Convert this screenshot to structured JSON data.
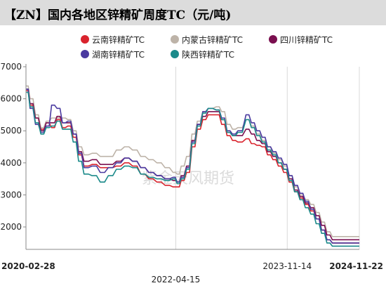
{
  "title": "【ZN】国内各地区锌精矿周度TC（元/吨)",
  "watermark": "紫金天风期货",
  "chart_data": {
    "type": "line",
    "title": "【ZN】国内各地区锌精矿周度TC（元/吨)",
    "xlabel": "",
    "ylabel": "",
    "ylim": [
      1300,
      7000
    ],
    "yticks": [
      2000,
      3000,
      4000,
      5000,
      6000,
      7000
    ],
    "xlim": [
      "2020-02-28",
      "2024-11-22"
    ],
    "x_tick_labels": [
      {
        "label": "2020-02-28",
        "date": "2020-02-28",
        "bold": true
      },
      {
        "label": "2022-04-15",
        "date": "2022-04-15",
        "bold": false
      },
      {
        "label": "2023-11-14",
        "date": "2023-11-14",
        "bold": false
      },
      {
        "label": "2024-11-22",
        "date": "2024-11-22",
        "bold": true
      }
    ],
    "grid": "vertical",
    "legend_position": "top",
    "series": [
      {
        "name": "云南锌精矿TC",
        "color": "#d9232d",
        "points": [
          [
            "2020-02-28",
            6250
          ],
          [
            "2020-03-20",
            5800
          ],
          [
            "2020-04-17",
            5400
          ],
          [
            "2020-05-15",
            5050
          ],
          [
            "2020-06-12",
            5250
          ],
          [
            "2020-07-10",
            5100
          ],
          [
            "2020-08-07",
            5350
          ],
          [
            "2020-09-04",
            5100
          ],
          [
            "2020-10-02",
            5150
          ],
          [
            "2020-10-30",
            4800
          ],
          [
            "2020-11-27",
            4250
          ],
          [
            "2020-12-25",
            3900
          ],
          [
            "2021-02-05",
            3950
          ],
          [
            "2021-03-19",
            3850
          ],
          [
            "2021-04-30",
            3850
          ],
          [
            "2021-06-11",
            3900
          ],
          [
            "2021-07-23",
            4000
          ],
          [
            "2021-09-03",
            3900
          ],
          [
            "2021-10-15",
            3650
          ],
          [
            "2021-11-26",
            3500
          ],
          [
            "2022-01-07",
            3400
          ],
          [
            "2022-02-18",
            3300
          ],
          [
            "2022-04-01",
            3250
          ],
          [
            "2022-04-22",
            3250
          ],
          [
            "2022-05-13",
            3450
          ],
          [
            "2022-06-10",
            3700
          ],
          [
            "2022-07-08",
            4500
          ],
          [
            "2022-08-05",
            5050
          ],
          [
            "2022-09-02",
            5350
          ],
          [
            "2022-09-30",
            5500
          ],
          [
            "2022-11-11",
            5500
          ],
          [
            "2022-12-09",
            5200
          ],
          [
            "2023-01-06",
            4850
          ],
          [
            "2023-02-03",
            4700
          ],
          [
            "2023-03-03",
            4650
          ],
          [
            "2023-04-14",
            4750
          ],
          [
            "2023-05-12",
            4600
          ],
          [
            "2023-06-09",
            4550
          ],
          [
            "2023-07-07",
            4500
          ],
          [
            "2023-08-04",
            4250
          ],
          [
            "2023-09-01",
            4100
          ],
          [
            "2023-09-29",
            3900
          ],
          [
            "2023-10-27",
            3700
          ],
          [
            "2023-11-24",
            3400
          ],
          [
            "2023-12-22",
            3100
          ],
          [
            "2024-01-19",
            2900
          ],
          [
            "2024-02-16",
            2700
          ],
          [
            "2024-03-15",
            2500
          ],
          [
            "2024-04-12",
            2250
          ],
          [
            "2024-05-10",
            1900
          ],
          [
            "2024-06-07",
            1600
          ],
          [
            "2024-07-05",
            1500
          ],
          [
            "2024-08-30",
            1500
          ],
          [
            "2024-11-22",
            1500
          ]
        ]
      },
      {
        "name": "内蒙古锌精矿TC",
        "color": "#bdb3a8",
        "points": [
          [
            "2020-02-28",
            6400
          ],
          [
            "2020-03-20",
            6000
          ],
          [
            "2020-04-17",
            5500
          ],
          [
            "2020-05-15",
            5100
          ],
          [
            "2020-06-12",
            5300
          ],
          [
            "2020-07-10",
            5400
          ],
          [
            "2020-08-07",
            5400
          ],
          [
            "2020-09-04",
            5400
          ],
          [
            "2020-10-02",
            5350
          ],
          [
            "2020-10-30",
            5000
          ],
          [
            "2020-11-27",
            4500
          ],
          [
            "2020-12-25",
            4250
          ],
          [
            "2021-02-05",
            4300
          ],
          [
            "2021-03-19",
            4200
          ],
          [
            "2021-04-30",
            4200
          ],
          [
            "2021-06-11",
            4400
          ],
          [
            "2021-07-23",
            4500
          ],
          [
            "2021-09-03",
            4400
          ],
          [
            "2021-10-15",
            4200
          ],
          [
            "2021-11-26",
            4100
          ],
          [
            "2022-01-07",
            4000
          ],
          [
            "2022-02-18",
            3850
          ],
          [
            "2022-04-01",
            3700
          ],
          [
            "2022-04-22",
            3650
          ],
          [
            "2022-05-13",
            3900
          ],
          [
            "2022-06-10",
            4200
          ],
          [
            "2022-07-08",
            4900
          ],
          [
            "2022-08-05",
            5300
          ],
          [
            "2022-09-02",
            5600
          ],
          [
            "2022-09-30",
            5700
          ],
          [
            "2022-11-11",
            5750
          ],
          [
            "2022-12-09",
            5600
          ],
          [
            "2023-01-06",
            5200
          ],
          [
            "2023-02-03",
            5050
          ],
          [
            "2023-03-03",
            5100
          ],
          [
            "2023-04-14",
            5350
          ],
          [
            "2023-05-12",
            5150
          ],
          [
            "2023-06-09",
            4900
          ],
          [
            "2023-07-07",
            4700
          ],
          [
            "2023-08-04",
            4500
          ],
          [
            "2023-09-01",
            4300
          ],
          [
            "2023-09-29",
            4100
          ],
          [
            "2023-10-27",
            3900
          ],
          [
            "2023-11-24",
            3600
          ],
          [
            "2023-12-22",
            3250
          ],
          [
            "2024-01-19",
            3000
          ],
          [
            "2024-02-16",
            2850
          ],
          [
            "2024-03-15",
            2700
          ],
          [
            "2024-04-12",
            2450
          ],
          [
            "2024-05-10",
            2150
          ],
          [
            "2024-06-07",
            1850
          ],
          [
            "2024-07-05",
            1700
          ],
          [
            "2024-08-30",
            1700
          ],
          [
            "2024-11-22",
            1700
          ]
        ]
      },
      {
        "name": "四川锌精矿TC",
        "color": "#7a0f4f",
        "points": [
          [
            "2020-02-28",
            6300
          ],
          [
            "2020-03-20",
            5850
          ],
          [
            "2020-04-17",
            5400
          ],
          [
            "2020-05-15",
            5000
          ],
          [
            "2020-06-12",
            5250
          ],
          [
            "2020-07-10",
            5250
          ],
          [
            "2020-08-07",
            5450
          ],
          [
            "2020-09-04",
            5250
          ],
          [
            "2020-10-02",
            5250
          ],
          [
            "2020-10-30",
            4900
          ],
          [
            "2020-11-27",
            4350
          ],
          [
            "2020-12-25",
            4050
          ],
          [
            "2021-02-05",
            4100
          ],
          [
            "2021-03-19",
            3950
          ],
          [
            "2021-04-30",
            3950
          ],
          [
            "2021-06-11",
            4050
          ],
          [
            "2021-07-23",
            4150
          ],
          [
            "2021-09-03",
            4050
          ],
          [
            "2021-10-15",
            3850
          ],
          [
            "2021-11-26",
            3700
          ],
          [
            "2022-01-07",
            3600
          ],
          [
            "2022-02-18",
            3500
          ],
          [
            "2022-04-01",
            3450
          ],
          [
            "2022-04-22",
            3400
          ],
          [
            "2022-05-13",
            3600
          ],
          [
            "2022-06-10",
            3900
          ],
          [
            "2022-07-08",
            4700
          ],
          [
            "2022-08-05",
            5200
          ],
          [
            "2022-09-02",
            5450
          ],
          [
            "2022-09-30",
            5600
          ],
          [
            "2022-11-11",
            5600
          ],
          [
            "2022-12-09",
            5350
          ],
          [
            "2023-01-06",
            4950
          ],
          [
            "2023-02-03",
            4850
          ],
          [
            "2023-03-03",
            4850
          ],
          [
            "2023-04-14",
            5050
          ],
          [
            "2023-05-12",
            4900
          ],
          [
            "2023-06-09",
            4700
          ],
          [
            "2023-07-07",
            4600
          ],
          [
            "2023-08-04",
            4350
          ],
          [
            "2023-09-01",
            4200
          ],
          [
            "2023-09-29",
            4000
          ],
          [
            "2023-10-27",
            3800
          ],
          [
            "2023-11-24",
            3500
          ],
          [
            "2023-12-22",
            3150
          ],
          [
            "2024-01-19",
            2950
          ],
          [
            "2024-02-16",
            2750
          ],
          [
            "2024-03-15",
            2600
          ],
          [
            "2024-04-12",
            2350
          ],
          [
            "2024-05-10",
            2050
          ],
          [
            "2024-06-07",
            1750
          ],
          [
            "2024-07-05",
            1600
          ],
          [
            "2024-08-30",
            1600
          ],
          [
            "2024-11-22",
            1600
          ]
        ]
      },
      {
        "name": "湖南锌精矿TC",
        "color": "#4a3aa0",
        "points": [
          [
            "2020-02-28",
            6300
          ],
          [
            "2020-03-20",
            5700
          ],
          [
            "2020-04-17",
            5200
          ],
          [
            "2020-05-15",
            4950
          ],
          [
            "2020-06-12",
            5150
          ],
          [
            "2020-07-10",
            5800
          ],
          [
            "2020-08-07",
            5700
          ],
          [
            "2020-09-04",
            5250
          ],
          [
            "2020-10-02",
            5300
          ],
          [
            "2020-10-30",
            4900
          ],
          [
            "2020-11-27",
            4300
          ],
          [
            "2020-12-25",
            3850
          ],
          [
            "2021-02-05",
            3900
          ],
          [
            "2021-03-19",
            3700
          ],
          [
            "2021-04-30",
            3850
          ],
          [
            "2021-06-11",
            4000
          ],
          [
            "2021-07-23",
            4150
          ],
          [
            "2021-09-03",
            4050
          ],
          [
            "2021-10-15",
            3850
          ],
          [
            "2021-11-26",
            3700
          ],
          [
            "2022-01-07",
            3600
          ],
          [
            "2022-02-18",
            3500
          ],
          [
            "2022-04-01",
            3550
          ],
          [
            "2022-04-22",
            3400
          ],
          [
            "2022-05-13",
            3550
          ],
          [
            "2022-06-10",
            3850
          ],
          [
            "2022-07-08",
            4650
          ],
          [
            "2022-08-05",
            5200
          ],
          [
            "2022-09-02",
            5600
          ],
          [
            "2022-09-30",
            5700
          ],
          [
            "2022-11-11",
            5650
          ],
          [
            "2022-12-09",
            5400
          ],
          [
            "2023-01-06",
            5000
          ],
          [
            "2023-02-03",
            4900
          ],
          [
            "2023-03-03",
            5000
          ],
          [
            "2023-04-14",
            5500
          ],
          [
            "2023-05-12",
            5250
          ],
          [
            "2023-06-09",
            5000
          ],
          [
            "2023-07-07",
            4800
          ],
          [
            "2023-08-04",
            4500
          ],
          [
            "2023-09-01",
            4350
          ],
          [
            "2023-09-29",
            4150
          ],
          [
            "2023-10-27",
            3950
          ],
          [
            "2023-11-24",
            3600
          ],
          [
            "2023-12-22",
            3300
          ],
          [
            "2024-01-19",
            3050
          ],
          [
            "2024-02-16",
            2800
          ],
          [
            "2024-03-15",
            2550
          ],
          [
            "2024-04-12",
            2250
          ],
          [
            "2024-05-10",
            1900
          ],
          [
            "2024-06-07",
            1600
          ],
          [
            "2024-07-05",
            1500
          ],
          [
            "2024-08-30",
            1500
          ],
          [
            "2024-11-22",
            1500
          ]
        ]
      },
      {
        "name": "陕西锌精矿TC",
        "color": "#1b8a8a",
        "points": [
          [
            "2020-02-28",
            6200
          ],
          [
            "2020-03-20",
            5750
          ],
          [
            "2020-04-17",
            5250
          ],
          [
            "2020-05-15",
            4900
          ],
          [
            "2020-06-12",
            5100
          ],
          [
            "2020-07-10",
            5150
          ],
          [
            "2020-08-07",
            5300
          ],
          [
            "2020-09-04",
            5050
          ],
          [
            "2020-10-02",
            5050
          ],
          [
            "2020-10-30",
            4650
          ],
          [
            "2020-11-27",
            4050
          ],
          [
            "2020-12-25",
            3650
          ],
          [
            "2021-02-05",
            3600
          ],
          [
            "2021-03-19",
            3400
          ],
          [
            "2021-04-30",
            3600
          ],
          [
            "2021-06-11",
            3800
          ],
          [
            "2021-07-23",
            3900
          ],
          [
            "2021-09-03",
            3850
          ],
          [
            "2021-10-15",
            3650
          ],
          [
            "2021-11-26",
            3550
          ],
          [
            "2022-01-07",
            3500
          ],
          [
            "2022-02-18",
            3450
          ],
          [
            "2022-04-01",
            3500
          ],
          [
            "2022-04-22",
            3350
          ],
          [
            "2022-05-13",
            3500
          ],
          [
            "2022-06-10",
            3800
          ],
          [
            "2022-07-08",
            4600
          ],
          [
            "2022-08-05",
            5150
          ],
          [
            "2022-09-02",
            5550
          ],
          [
            "2022-09-30",
            5700
          ],
          [
            "2022-11-11",
            5650
          ],
          [
            "2022-12-09",
            5350
          ],
          [
            "2023-01-06",
            4950
          ],
          [
            "2023-02-03",
            4850
          ],
          [
            "2023-03-03",
            4950
          ],
          [
            "2023-04-14",
            5350
          ],
          [
            "2023-05-12",
            5100
          ],
          [
            "2023-06-09",
            4850
          ],
          [
            "2023-07-07",
            4650
          ],
          [
            "2023-08-04",
            4400
          ],
          [
            "2023-09-01",
            4250
          ],
          [
            "2023-09-29",
            4000
          ],
          [
            "2023-10-27",
            3800
          ],
          [
            "2023-11-24",
            3450
          ],
          [
            "2023-12-22",
            3100
          ],
          [
            "2024-01-19",
            2850
          ],
          [
            "2024-02-16",
            2600
          ],
          [
            "2024-03-15",
            2400
          ],
          [
            "2024-04-12",
            2100
          ],
          [
            "2024-05-10",
            1800
          ],
          [
            "2024-06-07",
            1500
          ],
          [
            "2024-07-05",
            1400
          ],
          [
            "2024-08-30",
            1400
          ],
          [
            "2024-11-22",
            1400
          ]
        ]
      }
    ]
  }
}
